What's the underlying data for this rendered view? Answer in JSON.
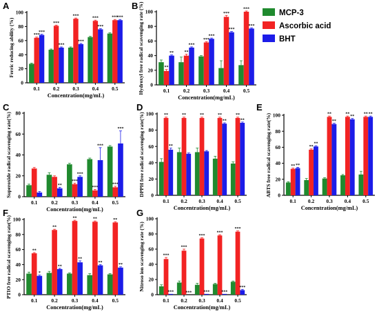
{
  "legend": [
    {
      "key": "mcp3",
      "label": "MCP-3",
      "color": "#1f8a2e"
    },
    {
      "key": "ascorbic",
      "label": "Ascorbic acid",
      "color": "#f22323"
    },
    {
      "key": "bht",
      "label": "BHT",
      "color": "#1c1ce8"
    }
  ],
  "chart_data": [
    {
      "panel": "A",
      "type": "bar",
      "ylabel": "Ferric reducing ability (%)",
      "xlabel": "Concentration(mg/mL)",
      "categories": [
        "0.1",
        "0.2",
        "0.3",
        "0.4",
        "0.5"
      ],
      "ylim": [
        0,
        100
      ],
      "yticks": [
        0,
        20,
        40,
        60,
        80,
        100
      ],
      "series": [
        {
          "name": "MCP-3",
          "values": [
            27,
            47,
            50,
            65,
            70
          ],
          "errors": [
            1,
            1,
            1,
            1,
            1
          ],
          "sig": [
            "",
            "",
            "",
            "",
            ""
          ]
        },
        {
          "name": "Ascorbic acid",
          "values": [
            64,
            81,
            91,
            88,
            89
          ],
          "errors": [
            1,
            1,
            1,
            1,
            1
          ],
          "sig": [
            "***",
            "***",
            "***",
            "***",
            "***"
          ]
        },
        {
          "name": "BHT",
          "values": [
            68,
            50,
            55,
            76,
            89
          ],
          "errors": [
            1,
            1,
            1,
            1,
            1
          ],
          "sig": [
            "***",
            "***",
            "***",
            "***",
            "***"
          ]
        }
      ]
    },
    {
      "panel": "B",
      "type": "bar",
      "ylabel": "Hydroxyl free radical scavenging rate (%)",
      "xlabel": "Concentration(mg/mL)",
      "categories": [
        "0.1",
        "0.2",
        "0.3",
        "0.4",
        "0.5"
      ],
      "ylim": [
        0,
        100
      ],
      "yticks": [
        0,
        20,
        40,
        60,
        80,
        100
      ],
      "series": [
        {
          "name": "MCP-3",
          "values": [
            31,
            31,
            39,
            23,
            27
          ],
          "errors": [
            3,
            7,
            1,
            10,
            6
          ],
          "sig": [
            "",
            "",
            "",
            "",
            ""
          ]
        },
        {
          "name": "Ascorbic acid",
          "values": [
            19,
            40,
            58,
            93,
            100
          ],
          "errors": [
            2,
            2,
            1,
            2,
            1
          ],
          "sig": [
            "**",
            "**",
            "***",
            "***",
            "***"
          ]
        },
        {
          "name": "BHT",
          "values": [
            40,
            51,
            63,
            72,
            77
          ],
          "errors": [
            1,
            1,
            1,
            1,
            1
          ],
          "sig": [
            "**",
            "***",
            "***",
            "***",
            "***"
          ]
        }
      ]
    },
    {
      "panel": "C",
      "type": "bar",
      "ylabel": "Superoxide radical scavenging rate(%)",
      "xlabel": "Concentration(mg/mL)",
      "categories": [
        "0.1",
        "0.2",
        "0.3",
        "0.4",
        "0.5"
      ],
      "ylim": [
        0,
        80
      ],
      "yticks": [
        0,
        20,
        40,
        60,
        80
      ],
      "series": [
        {
          "name": "MCP-3",
          "values": [
            11,
            21,
            31,
            36,
            48
          ],
          "errors": [
            1,
            2,
            1,
            1,
            1
          ],
          "sig": [
            "",
            "",
            "",
            "",
            ""
          ]
        },
        {
          "name": "Ascorbic acid",
          "values": [
            27,
            19,
            12,
            6,
            9
          ],
          "errors": [
            1,
            1,
            1,
            1,
            1
          ],
          "sig": [
            "",
            "",
            "***",
            "***",
            "***"
          ]
        },
        {
          "name": "BHT",
          "values": [
            4,
            8,
            19,
            35,
            51
          ],
          "errors": [
            1,
            1,
            1,
            12,
            12
          ],
          "sig": [
            "",
            "**",
            "***",
            "***",
            "***"
          ]
        }
      ]
    },
    {
      "panel": "D",
      "type": "bar",
      "ylabel": "DPPH free radical scavenging rate(%)",
      "xlabel": "Concentration(mg/mL)",
      "categories": [
        "0.1",
        "0.2",
        "0.3",
        "0.4",
        "0.5"
      ],
      "ylim": [
        0,
        100
      ],
      "yticks": [
        0,
        20,
        40,
        60,
        80,
        100
      ],
      "series": [
        {
          "name": "MCP-3",
          "values": [
            41,
            53,
            53,
            45,
            39
          ],
          "errors": [
            4,
            5,
            5,
            3,
            2
          ],
          "sig": [
            "",
            "",
            "",
            "",
            ""
          ]
        },
        {
          "name": "Ascorbic acid",
          "values": [
            95,
            95,
            95,
            95,
            95
          ],
          "errors": [
            1,
            1,
            1,
            1,
            1
          ],
          "sig": [
            "**",
            "**",
            "**",
            "**",
            "**"
          ]
        },
        {
          "name": "BHT",
          "values": [
            56,
            51,
            54,
            88,
            89
          ],
          "errors": [
            2,
            1,
            1,
            1,
            1
          ],
          "sig": [
            "**",
            "",
            "",
            "**",
            "**"
          ]
        }
      ]
    },
    {
      "panel": "E",
      "type": "bar",
      "ylabel": "ABTS free radical scavenging rate(%)",
      "xlabel": "Concentration(mg/mL)",
      "categories": [
        "0.1",
        "0.2",
        "0.3",
        "0.4",
        "0.5"
      ],
      "ylim": [
        0,
        100
      ],
      "yticks": [
        0,
        20,
        40,
        60,
        80,
        100
      ],
      "series": [
        {
          "name": "MCP-3",
          "values": [
            16,
            19,
            21,
            25,
            26
          ],
          "errors": [
            1,
            2,
            1,
            1,
            4
          ],
          "sig": [
            "",
            "",
            "",
            "",
            ""
          ]
        },
        {
          "name": "Ascorbic acid",
          "values": [
            33,
            57,
            98,
            98,
            98
          ],
          "errors": [
            1,
            1,
            1,
            1,
            1
          ],
          "sig": [
            "**",
            "**",
            "**",
            "**",
            "**"
          ]
        },
        {
          "name": "BHT",
          "values": [
            34,
            61,
            89,
            95,
            98
          ],
          "errors": [
            1,
            1,
            1,
            1,
            1
          ],
          "sig": [
            "**",
            "**",
            "**",
            "**",
            "**"
          ]
        }
      ]
    },
    {
      "panel": "F",
      "type": "bar",
      "ylabel": "PTIO free radical scavenging rate(%)",
      "xlabel": "Concentration(mg/mL)",
      "categories": [
        "0.1",
        "0.2",
        "0.3",
        "0.4",
        "0.5"
      ],
      "ylim": [
        0,
        100
      ],
      "yticks": [
        0,
        20,
        40,
        60,
        80,
        100
      ],
      "series": [
        {
          "name": "MCP-3",
          "values": [
            28,
            29,
            28,
            26,
            27
          ],
          "errors": [
            2,
            2,
            1,
            2,
            1
          ],
          "sig": [
            "",
            "",
            "",
            "",
            ""
          ]
        },
        {
          "name": "Ascorbic acid",
          "values": [
            55,
            86,
            98,
            97,
            96
          ],
          "errors": [
            1,
            1,
            1,
            1,
            1
          ],
          "sig": [
            "**",
            "**",
            "**",
            "**",
            "**"
          ]
        },
        {
          "name": "BHT",
          "values": [
            25,
            34,
            43,
            39,
            36
          ],
          "errors": [
            1,
            1,
            2,
            1,
            1
          ],
          "sig": [
            "*",
            "**",
            "**",
            "**",
            "**"
          ]
        }
      ]
    },
    {
      "panel": "G",
      "type": "bar",
      "ylabel": "Nitroso ion scavenging rate (%)",
      "xlabel": "Concentration(mg/mL)",
      "categories": [
        "0.1",
        "0.2",
        "0.3",
        "0.4",
        "0.5"
      ],
      "ylim": [
        0,
        100
      ],
      "yticks": [
        0,
        20,
        40,
        60,
        80,
        100
      ],
      "series": [
        {
          "name": "MCP-3",
          "values": [
            11,
            16,
            13,
            14,
            17
          ],
          "errors": [
            2,
            2,
            2,
            1,
            1
          ],
          "sig": [
            "",
            "",
            "",
            "",
            ""
          ]
        },
        {
          "name": "Ascorbic acid",
          "values": [
            47,
            58,
            74,
            78,
            83
          ],
          "errors": [
            2,
            2,
            1,
            1,
            1
          ],
          "sig": [
            "***",
            "***",
            "***",
            "***",
            "***"
          ]
        },
        {
          "name": "BHT",
          "values": [
            1,
            0,
            1,
            1,
            6
          ],
          "errors": [
            0,
            0,
            0,
            0,
            1
          ],
          "sig": [
            "***",
            "***",
            "***",
            "***",
            "***"
          ]
        }
      ]
    }
  ]
}
